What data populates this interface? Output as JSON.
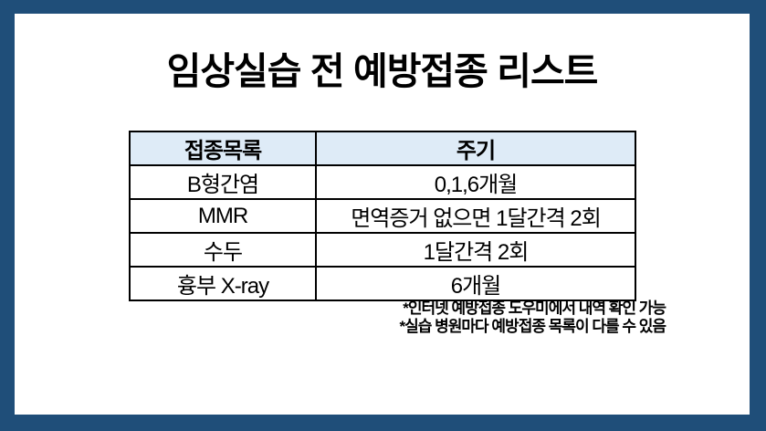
{
  "colors": {
    "frame": "#1F4E79",
    "background": "#FFFFFF",
    "table_header_bg": "#DEEBF7",
    "table_border": "#000000",
    "text": "#000000"
  },
  "title": "임상실습 전 예방접종 리스트",
  "table": {
    "headers": [
      "접종목록",
      "주기"
    ],
    "rows": [
      [
        "B형간염",
        "0,1,6개월"
      ],
      [
        "MMR",
        "면역증거 없으면 1달간격 2회"
      ],
      [
        "수두",
        "1달간격 2회"
      ],
      [
        "흉부 X-ray",
        "6개월"
      ]
    ]
  },
  "footnotes": [
    "*인터넷 예방접종 도우미에서 내역 확인 가능",
    "*실습 병원마다 예방접종 목록이 다를 수 있음"
  ]
}
